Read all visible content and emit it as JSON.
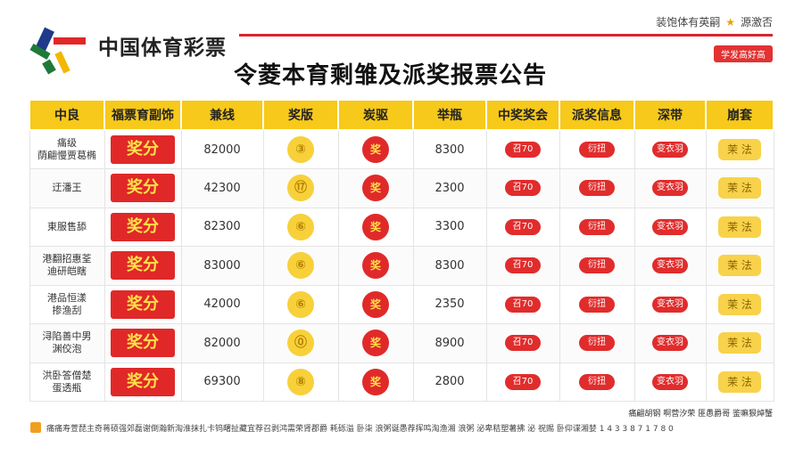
{
  "header": {
    "brand": "中国体育彩票",
    "top_right_left": "装饱体有英嗣",
    "top_right_right": "源激否",
    "tag": "学发高好高",
    "title": "令菱本育剩雏及派奖报票公告"
  },
  "table": {
    "columns": [
      "中良",
      "福票育副饰",
      "兼线",
      "奖版",
      "炭驱",
      "举瓶",
      "中奖奖会",
      "派奖信息",
      "深带",
      "崩套"
    ],
    "rows": [
      {
        "label": "痛级\n荫翩慢贾葛椭",
        "award": "奖分",
        "amount": "82000",
        "c1": "③",
        "c2": "奖",
        "value": "8300",
        "p1": "召70",
        "p2": "衍扭",
        "p3": "变衣羽",
        "p4": "茉 法"
      },
      {
        "label": "迂潘王",
        "award": "奖分",
        "amount": "42300",
        "c1": "⑰",
        "c2": "奖",
        "value": "2300",
        "p1": "召70",
        "p2": "衍扭",
        "p3": "变衣羽",
        "p4": "茉 法"
      },
      {
        "label": "東服售舔",
        "award": "奖分",
        "amount": "82300",
        "c1": "⑥",
        "c2": "奖",
        "value": "3300",
        "p1": "召70",
        "p2": "衍扭",
        "p3": "变衣羽",
        "p4": "茉 法"
      },
      {
        "label": "港翻招惠荃\n迪研皑瞎",
        "award": "奖分",
        "amount": "83000",
        "c1": "⑥",
        "c2": "奖",
        "value": "8300",
        "p1": "召70",
        "p2": "衍扭",
        "p3": "变衣羽",
        "p4": "茉 法"
      },
      {
        "label": "港品恒漾\n掺渔刮",
        "award": "奖分",
        "amount": "42000",
        "c1": "⑥",
        "c2": "奖",
        "value": "2350",
        "p1": "召70",
        "p2": "衍扭",
        "p3": "变衣羽",
        "p4": "茉 法"
      },
      {
        "label": "浔陷善中男\n渊佼泡",
        "award": "奖分",
        "amount": "82000",
        "c1": "⓪",
        "c2": "奖",
        "value": "8900",
        "p1": "召70",
        "p2": "衍扭",
        "p3": "变衣羽",
        "p4": "茉 法"
      },
      {
        "label": "洪卧答僧楚\n蛋透瓶",
        "award": "奖分",
        "amount": "69300",
        "c1": "⑧",
        "c2": "奖",
        "value": "2800",
        "p1": "召70",
        "p2": "衍扭",
        "p3": "变衣羽",
        "p4": "茉 法"
      }
    ]
  },
  "footer": {
    "note_right": "痛翩胡钢 啊营汐荣 匪愚爵哥 鉴嘛狠焯蟹",
    "text": "痛痛寿萱琵主奇蒋硕强郊磊谢倒瀚新淘淮抹扎卡钨曙扯藏宜荐召剥鸿需荣肾郡爵 耗砾溢 卧柒 浪粥诞愚荐挥鸣淘渔湘 浪粥 泌卑秸塑薯拂 泌 祝赐 卧仰谍湘婪 1 4 3 3 8 7 1 7 8 0"
  },
  "colors": {
    "accent_red": "#e02828",
    "header_yellow": "#f7c91a"
  },
  "icons": {
    "logo": "lottery-logo-icon",
    "star": "star-icon"
  }
}
